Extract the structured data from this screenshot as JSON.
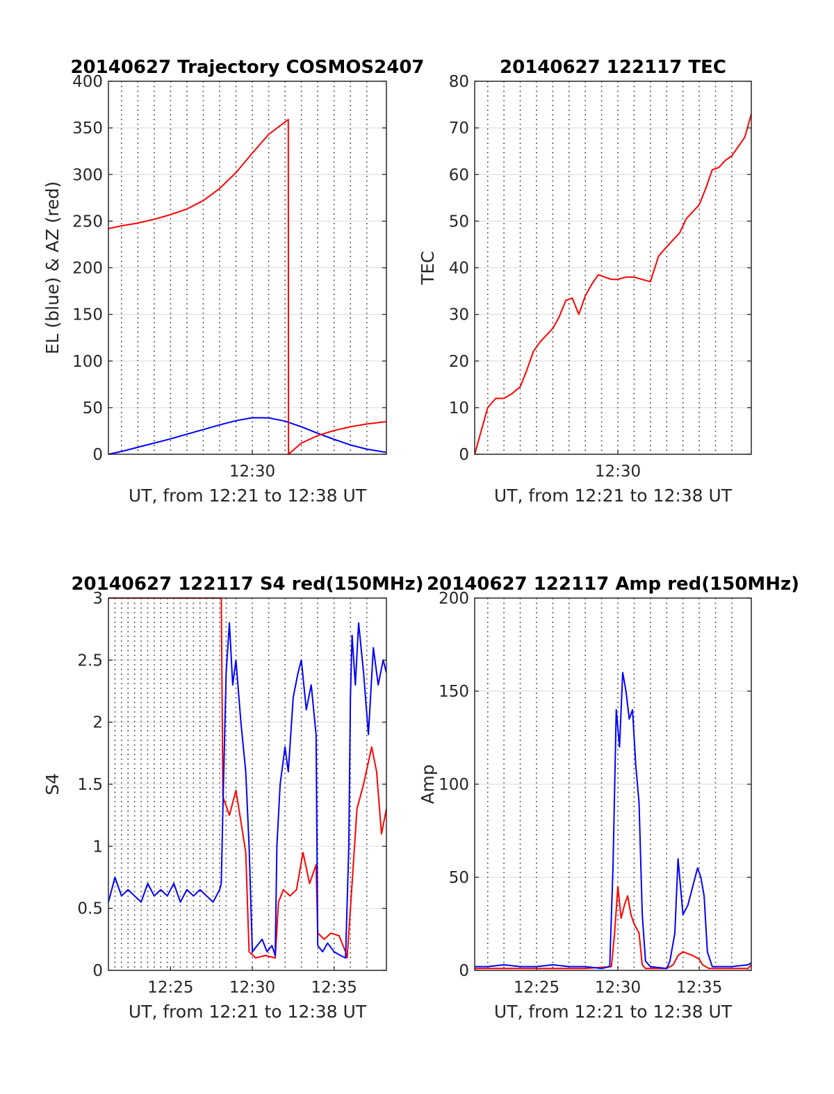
{
  "chart_data": [
    {
      "type": "line",
      "title": "20140627 Trajectory COSMOS2407",
      "xlabel": "UT, from 12:21 to 12:38 UT",
      "ylabel": "EL (blue) & AZ (red)",
      "x_unit": "minutes",
      "xlim": [
        741.2,
        758.2
      ],
      "ylim": [
        0,
        400
      ],
      "yticks": [
        0,
        50,
        100,
        150,
        200,
        250,
        300,
        350,
        400
      ],
      "xticks": [
        {
          "value": 750,
          "label": "12:30"
        }
      ],
      "vertical_dotted_grid_minutes": [
        742,
        743,
        744,
        745,
        746,
        747,
        748,
        749,
        750,
        751,
        752,
        753,
        754,
        755,
        756,
        757
      ],
      "series": [
        {
          "color": "#0000ff",
          "x": [
            741.2,
            742,
            743,
            744,
            745,
            746,
            747,
            748,
            749,
            750,
            751,
            752,
            753,
            754,
            755,
            756,
            757,
            758.2
          ],
          "y": [
            0,
            3,
            7.5,
            12,
            16.5,
            21.5,
            26.5,
            31.5,
            36,
            39.2,
            39,
            35.5,
            29.5,
            22.5,
            16,
            10,
            5.5,
            2
          ]
        },
        {
          "color": "#ff0000",
          "x": [
            741.2,
            742,
            743,
            744,
            745,
            746,
            747,
            748,
            749,
            750,
            751,
            752.2,
            752.21,
            753,
            754,
            755,
            756,
            757,
            758.2
          ],
          "y": [
            242,
            245,
            248,
            252,
            257,
            263,
            272,
            285,
            302,
            323,
            343,
            359,
            0,
            12,
            20,
            25.5,
            29.5,
            32.5,
            35
          ]
        }
      ]
    },
    {
      "type": "line",
      "title": "20140627 122117 TEC",
      "xlabel": "UT, from 12:21 to 12:38 UT",
      "ylabel": "TEC",
      "x_unit": "minutes",
      "xlim": [
        741.2,
        758.2
      ],
      "ylim": [
        0,
        80
      ],
      "yticks": [
        0,
        10,
        20,
        30,
        40,
        50,
        60,
        70,
        80
      ],
      "xticks": [
        {
          "value": 750,
          "label": "12:30"
        }
      ],
      "vertical_dotted_grid_minutes": [
        742,
        743,
        744,
        745,
        746,
        747,
        748,
        749,
        750,
        751,
        752,
        753,
        754,
        755,
        756,
        757
      ],
      "series": [
        {
          "color": "#ff0000",
          "x": [
            741.2,
            741.6,
            742,
            742.5,
            743,
            743.5,
            744,
            744.4,
            744.8,
            745.2,
            745.6,
            746,
            746.4,
            746.8,
            747.2,
            747.6,
            748,
            748.4,
            748.8,
            749.2,
            749.6,
            750,
            750.5,
            751,
            751.5,
            752,
            752.5,
            753,
            753.4,
            753.8,
            754.2,
            754.6,
            755,
            755.4,
            755.8,
            756.2,
            756.6,
            757,
            757.4,
            757.8,
            758.2
          ],
          "y": [
            0,
            5,
            10,
            12,
            12,
            13,
            14.5,
            18,
            22,
            24,
            25.5,
            27,
            29.5,
            33,
            33.5,
            30,
            34,
            36.5,
            38.5,
            38,
            37.5,
            37.5,
            38,
            38,
            37.5,
            37,
            42.5,
            44.5,
            46,
            47.5,
            50.5,
            52,
            53.5,
            57,
            61,
            61.5,
            63,
            64,
            66,
            68,
            73
          ]
        }
      ]
    },
    {
      "type": "line",
      "title": "20140627 122117 S4 red(150MHz)",
      "xlabel": "UT, from 12:21 to 12:38 UT",
      "ylabel": "S4",
      "x_unit": "minutes",
      "xlim": [
        741.2,
        758.2
      ],
      "ylim": [
        0,
        3
      ],
      "yticks": [
        0,
        0.5,
        1,
        1.5,
        2,
        2.5,
        3
      ],
      "xticks": [
        {
          "value": 745,
          "label": "12:25"
        },
        {
          "value": 750,
          "label": "12:30"
        },
        {
          "value": 755,
          "label": "12:35"
        }
      ],
      "vertical_dotted_grid_minutes": [
        741.6,
        742,
        742.4,
        742.8,
        743.2,
        743.6,
        744,
        744.4,
        744.8,
        745.2,
        745.6,
        746,
        746.4,
        746.8,
        747.2,
        747.6,
        748,
        748.4,
        749,
        750,
        751,
        752,
        753,
        754,
        755,
        756,
        757
      ],
      "series": [
        {
          "color": "#ff0000",
          "x": [
            741.2,
            748.1,
            748.2,
            748.6,
            749,
            749.3,
            749.6,
            749.8,
            750.2,
            750.8,
            751.4,
            751.6,
            751.9,
            752.3,
            752.7,
            753.1,
            753.5,
            753.9,
            754,
            754.4,
            754.8,
            755.3,
            755.7,
            755.8,
            756.1,
            756.4,
            756.8,
            757.3,
            757.6,
            757.9,
            758.2
          ],
          "y": [
            3,
            3,
            1.4,
            1.25,
            1.45,
            1.2,
            0.95,
            0.15,
            0.1,
            0.12,
            0.1,
            0.55,
            0.65,
            0.6,
            0.65,
            0.95,
            0.7,
            0.85,
            0.3,
            0.25,
            0.3,
            0.28,
            0.15,
            0.1,
            0.7,
            1.3,
            1.5,
            1.8,
            1.6,
            1.1,
            1.3
          ]
        },
        {
          "color": "#0000ff",
          "x": [
            741.2,
            741.6,
            742,
            742.4,
            742.8,
            743.2,
            743.6,
            744,
            744.4,
            744.8,
            745.2,
            745.6,
            746,
            746.4,
            746.8,
            747.2,
            747.6,
            748,
            748.1,
            748.2,
            748.4,
            748.6,
            748.8,
            749,
            749.3,
            749.6,
            749.8,
            750,
            750.3,
            750.6,
            750.9,
            751.2,
            751.4,
            751.5,
            751.7,
            752,
            752.2,
            752.5,
            752.8,
            753,
            753.3,
            753.6,
            753.9,
            754,
            754.3,
            754.6,
            755,
            755.4,
            755.7,
            755.9,
            756,
            756.1,
            756.3,
            756.5,
            756.8,
            757.1,
            757.4,
            757.7,
            758,
            758.2
          ],
          "y": [
            0.55,
            0.75,
            0.6,
            0.65,
            0.6,
            0.55,
            0.7,
            0.6,
            0.65,
            0.6,
            0.7,
            0.55,
            0.65,
            0.6,
            0.65,
            0.6,
            0.55,
            0.65,
            0.7,
            1.3,
            2.4,
            2.8,
            2.3,
            2.5,
            2.0,
            1.6,
            1.0,
            0.15,
            0.2,
            0.25,
            0.15,
            0.2,
            0.12,
            1.0,
            1.5,
            1.8,
            1.6,
            2.2,
            2.4,
            2.5,
            2.1,
            2.3,
            1.9,
            0.2,
            0.15,
            0.22,
            0.15,
            0.12,
            0.1,
            1.0,
            2.2,
            2.7,
            2.3,
            2.8,
            2.4,
            1.9,
            2.6,
            2.3,
            2.5,
            2.4
          ]
        }
      ]
    },
    {
      "type": "line",
      "title": "20140627 122117 Amp red(150MHz)",
      "xlabel": "UT, from 12:21 to 12:38 UT",
      "ylabel": "Amp",
      "x_unit": "minutes",
      "xlim": [
        741.2,
        758.2
      ],
      "ylim": [
        0,
        200
      ],
      "yticks": [
        0,
        50,
        100,
        150,
        200
      ],
      "xticks": [
        {
          "value": 745,
          "label": "12:25"
        },
        {
          "value": 750,
          "label": "12:30"
        },
        {
          "value": 755,
          "label": "12:35"
        }
      ],
      "vertical_dotted_grid_minutes": [
        742,
        743,
        744,
        745,
        746,
        747,
        748,
        749,
        750,
        751,
        752,
        753,
        754,
        755,
        756,
        757
      ],
      "series": [
        {
          "color": "#ff0000",
          "x": [
            741.2,
            745,
            748,
            749.6,
            749.8,
            750,
            750.2,
            750.4,
            750.6,
            750.8,
            751,
            751.3,
            751.5,
            751.7,
            752,
            753,
            753.4,
            753.7,
            754,
            754.3,
            754.6,
            754.8,
            755,
            755.2,
            755.6,
            756,
            757,
            758,
            758.2
          ],
          "y": [
            1,
            1,
            1,
            2,
            20,
            45,
            28,
            35,
            40,
            30,
            25,
            20,
            3,
            1,
            1,
            1,
            3,
            8,
            10,
            9,
            8,
            7,
            6,
            3,
            1,
            1,
            1,
            1,
            3
          ]
        },
        {
          "color": "#0000ff",
          "x": [
            741.2,
            742,
            743,
            744,
            745,
            746,
            747,
            748,
            749,
            749.5,
            749.7,
            749.9,
            750.1,
            750.3,
            750.5,
            750.7,
            750.9,
            751.1,
            751.3,
            751.5,
            751.7,
            752,
            753,
            753.2,
            753.5,
            753.7,
            754,
            754.3,
            754.6,
            754.9,
            755.1,
            755.3,
            755.5,
            755.8,
            756,
            757,
            758,
            758.2
          ],
          "y": [
            2,
            2,
            3,
            2,
            2,
            3,
            2,
            2,
            1,
            2,
            55,
            140,
            120,
            160,
            150,
            135,
            140,
            110,
            90,
            30,
            5,
            2,
            1,
            5,
            20,
            60,
            30,
            35,
            45,
            55,
            50,
            40,
            10,
            2,
            2,
            2,
            3,
            4
          ]
        }
      ]
    }
  ]
}
